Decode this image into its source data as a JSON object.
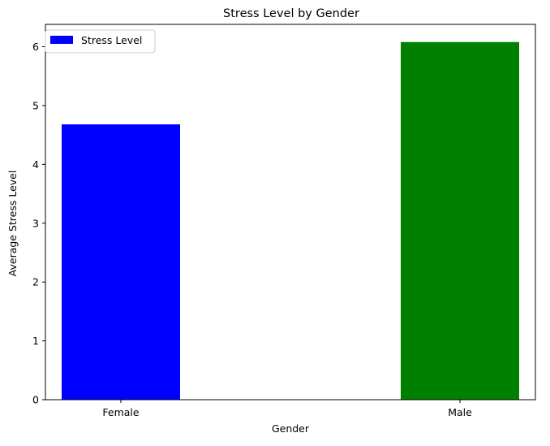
{
  "chart_data": {
    "type": "bar",
    "title": "Stress Level by Gender",
    "xlabel": "Gender",
    "ylabel": "Average Stress Level",
    "categories": [
      "Female",
      "Male"
    ],
    "series": [
      {
        "name": "Stress Level",
        "values": [
          4.68,
          6.08
        ],
        "colors": [
          "#0000ff",
          "#008000"
        ]
      }
    ],
    "ylim": [
      0,
      6.38
    ],
    "yticks": [
      0,
      1,
      2,
      3,
      4,
      5,
      6
    ],
    "grid": false,
    "legend": "top-left",
    "legend_color": "#0000ff"
  }
}
